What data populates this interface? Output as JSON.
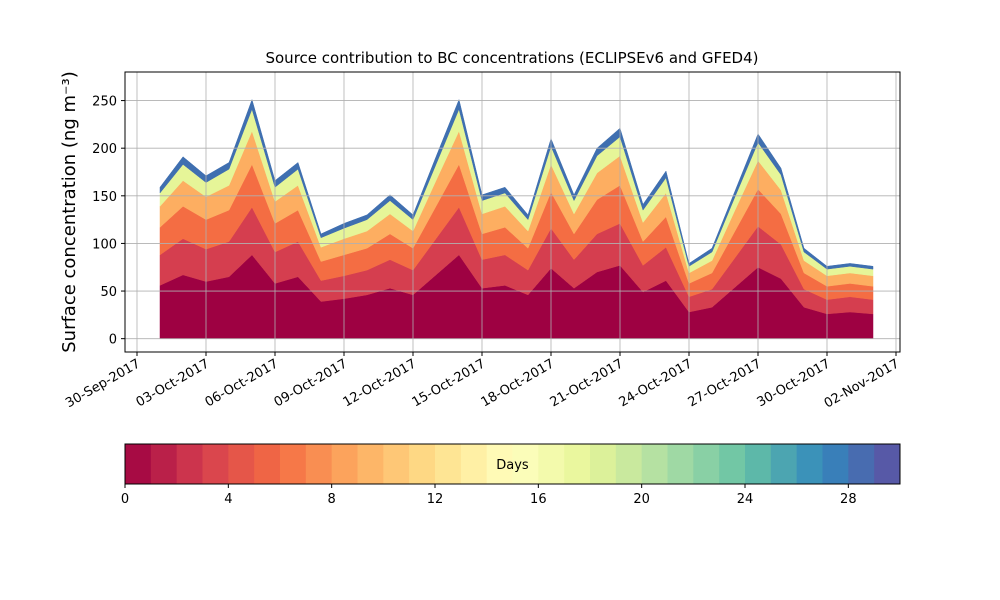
{
  "chart_data": {
    "type": "stacked_area",
    "title": "Source contribution to BC concentrations (ECLIPSEv6 and GFED4)",
    "ylabel": "Surface concentration (ng m⁻³)",
    "x": [
      "2017-10-01",
      "2017-10-02",
      "2017-10-03",
      "2017-10-04",
      "2017-10-05",
      "2017-10-06",
      "2017-10-07",
      "2017-10-08",
      "2017-10-09",
      "2017-10-10",
      "2017-10-11",
      "2017-10-12",
      "2017-10-13",
      "2017-10-14",
      "2017-10-15",
      "2017-10-16",
      "2017-10-17",
      "2017-10-18",
      "2017-10-19",
      "2017-10-20",
      "2017-10-21",
      "2017-10-22",
      "2017-10-23",
      "2017-10-24",
      "2017-10-25",
      "2017-10-26",
      "2017-10-27",
      "2017-10-28",
      "2017-10-29",
      "2017-10-30",
      "2017-10-31",
      "2017-11-01"
    ],
    "series": [
      {
        "color": "#9e0142",
        "values": [
          56,
          67,
          60,
          65,
          88,
          58,
          65,
          39,
          42,
          46,
          53,
          46,
          67,
          88,
          53,
          56,
          46,
          74,
          53,
          70,
          77,
          49,
          61,
          28,
          33,
          54,
          75,
          63,
          33,
          26,
          28,
          26
        ]
      },
      {
        "color": "#d53e4f",
        "values": [
          32,
          38,
          34,
          37,
          50,
          33,
          37,
          22,
          24,
          26,
          30,
          26,
          38,
          50,
          30,
          32,
          26,
          42,
          30,
          40,
          44,
          28,
          35,
          16,
          19,
          31,
          43,
          36,
          19,
          15,
          16,
          15
        ]
      },
      {
        "color": "#f46d43",
        "values": [
          29,
          34,
          31,
          33,
          45,
          30,
          33,
          20,
          22,
          23,
          27,
          23,
          34,
          45,
          27,
          29,
          23,
          38,
          27,
          36,
          40,
          25,
          32,
          14,
          17,
          28,
          39,
          32,
          17,
          14,
          14,
          14
        ]
      },
      {
        "color": "#fdae61",
        "values": [
          22,
          27,
          24,
          26,
          35,
          23,
          26,
          15,
          17,
          18,
          21,
          18,
          27,
          35,
          21,
          22,
          18,
          29,
          21,
          28,
          31,
          20,
          25,
          11,
          13,
          22,
          30,
          25,
          13,
          11,
          11,
          11
        ]
      },
      {
        "color": "#e6f598",
        "values": [
          14,
          17,
          15,
          17,
          23,
          15,
          17,
          10,
          11,
          12,
          14,
          12,
          17,
          23,
          14,
          14,
          12,
          19,
          14,
          18,
          20,
          13,
          16,
          7,
          9,
          14,
          19,
          16,
          9,
          7,
          7,
          7
        ]
      },
      {
        "color": "#3f6fb0",
        "values": [
          6,
          8,
          7,
          7,
          10,
          7,
          7,
          4,
          5,
          5,
          6,
          5,
          8,
          10,
          6,
          6,
          5,
          8,
          6,
          8,
          9,
          6,
          7,
          3,
          4,
          6,
          9,
          7,
          4,
          3,
          3,
          3
        ]
      }
    ],
    "xlim": [
      "2017-09-30",
      "2017-11-02"
    ],
    "xticks": [
      {
        "value": "2017-09-30",
        "label": "30-Sep-2017"
      },
      {
        "value": "2017-10-03",
        "label": "03-Oct-2017"
      },
      {
        "value": "2017-10-06",
        "label": "06-Oct-2017"
      },
      {
        "value": "2017-10-09",
        "label": "09-Oct-2017"
      },
      {
        "value": "2017-10-12",
        "label": "12-Oct-2017"
      },
      {
        "value": "2017-10-15",
        "label": "15-Oct-2017"
      },
      {
        "value": "2017-10-18",
        "label": "18-Oct-2017"
      },
      {
        "value": "2017-10-21",
        "label": "21-Oct-2017"
      },
      {
        "value": "2017-10-24",
        "label": "24-Oct-2017"
      },
      {
        "value": "2017-10-27",
        "label": "27-Oct-2017"
      },
      {
        "value": "2017-10-30",
        "label": "30-Oct-2017"
      },
      {
        "value": "2017-11-02",
        "label": "02-Nov-2017"
      }
    ],
    "ylim": [
      -14,
      280
    ],
    "yticks": [
      0,
      50,
      100,
      150,
      200,
      250
    ],
    "grid": true,
    "colorbar": {
      "label": "Days",
      "lim": [
        0,
        30
      ],
      "ticks": [
        0,
        4,
        8,
        12,
        16,
        20,
        24,
        28
      ],
      "levels": 30,
      "colors": [
        "#9e0142",
        "#d53e4f",
        "#f46d43",
        "#fdae61",
        "#fee08b",
        "#ffffbf",
        "#e6f598",
        "#abdda4",
        "#66c2a5",
        "#3288bd",
        "#5e4fa2"
      ]
    }
  }
}
